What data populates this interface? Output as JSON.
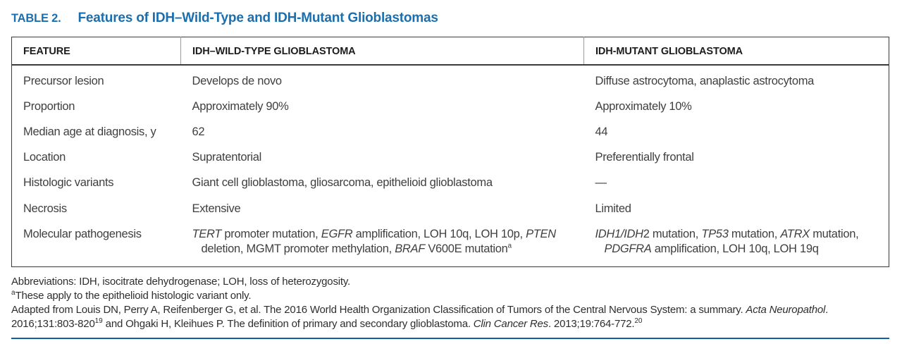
{
  "title": {
    "label": "TABLE 2.",
    "caption": "Features of IDH–Wild-Type and IDH-Mutant Glioblastomas"
  },
  "table": {
    "headers": {
      "feature": "FEATURE",
      "wild_type": "IDH–WILD-TYPE GLIOBLASTOMA",
      "mutant": "IDH-MUTANT GLIOBLASTOMA"
    },
    "rows": [
      {
        "feature": "Precursor lesion",
        "wild_type": [
          {
            "t": "Develops de novo"
          }
        ],
        "mutant": [
          {
            "t": "Diffuse astrocytoma, anaplastic astrocytoma"
          }
        ]
      },
      {
        "feature": "Proportion",
        "wild_type": [
          {
            "t": "Approximately 90%"
          }
        ],
        "mutant": [
          {
            "t": "Approximately 10%"
          }
        ]
      },
      {
        "feature": "Median age at diagnosis, y",
        "wild_type": [
          {
            "t": "62"
          }
        ],
        "mutant": [
          {
            "t": "44"
          }
        ]
      },
      {
        "feature": "Location",
        "wild_type": [
          {
            "t": "Supratentorial"
          }
        ],
        "mutant": [
          {
            "t": "Preferentially frontal"
          }
        ]
      },
      {
        "feature": "Histologic variants",
        "wild_type": [
          {
            "t": "Giant cell glioblastoma, gliosarcoma, epithelioid glioblastoma"
          }
        ],
        "mutant": [
          {
            "t": "—"
          }
        ]
      },
      {
        "feature": "Necrosis",
        "wild_type": [
          {
            "t": "Extensive"
          }
        ],
        "mutant": [
          {
            "t": "Limited"
          }
        ]
      },
      {
        "feature": "Molecular pathogenesis",
        "wild_type": [
          {
            "t": "TERT",
            "s": "i"
          },
          {
            "t": " promoter mutation, "
          },
          {
            "t": "EGFR",
            "s": "i"
          },
          {
            "t": " amplification, LOH 10q, LOH 10p, "
          },
          {
            "t": "PTEN",
            "s": "i"
          },
          {
            "t": " deletion, MGMT promoter methylation, "
          },
          {
            "t": "BRAF",
            "s": "i"
          },
          {
            "t": " V600E mutation"
          },
          {
            "t": "a",
            "s": "sup"
          }
        ],
        "mutant": [
          {
            "t": "IDH1/IDH",
            "s": "i"
          },
          {
            "t": "2 mutation, "
          },
          {
            "t": "TP53",
            "s": "i"
          },
          {
            "t": " mutation, "
          },
          {
            "t": "ATRX",
            "s": "i"
          },
          {
            "t": " mutation, "
          },
          {
            "t": "PDGFRA",
            "s": "i"
          },
          {
            "t": " amplification, LOH 10q, LOH 19q"
          }
        ]
      }
    ]
  },
  "footnotes": {
    "abbreviations": [
      {
        "t": "Abbreviations: IDH, isocitrate dehydrogenase; LOH, loss of heterozygosity."
      }
    ],
    "note_a": [
      {
        "t": "a",
        "s": "sup"
      },
      {
        "t": "These apply to the epithelioid histologic variant only."
      }
    ],
    "source": [
      {
        "t": "Adapted from Louis DN, Perry A, Reifenberger G, et al. The 2016 World Health Organization Classification of Tumors of the Central Nervous System: a summary. "
      },
      {
        "t": "Acta Neuropathol",
        "s": "i"
      },
      {
        "t": ". 2016;131:803-820"
      },
      {
        "t": "19",
        "s": "sup"
      },
      {
        "t": " and Ohgaki H, Kleihues P. The definition of primary and secondary glioblastoma. "
      },
      {
        "t": "Clin Cancer Res",
        "s": "i"
      },
      {
        "t": ". 2013;19:764-772."
      },
      {
        "t": "20",
        "s": "sup"
      }
    ]
  },
  "colors": {
    "title_blue": "#1b6fae",
    "rule_blue": "#1060a8",
    "table_border": "#3a3a3a"
  }
}
